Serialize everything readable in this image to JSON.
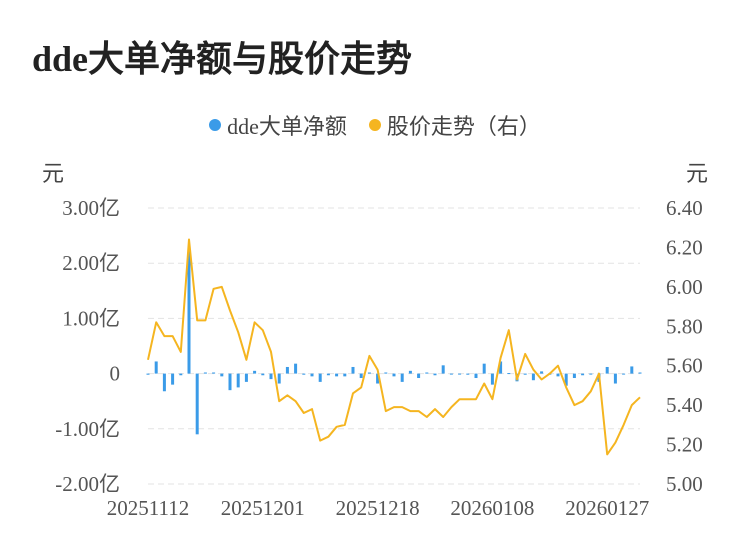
{
  "title": "dde大单净额与股价走势",
  "legend": {
    "items": [
      {
        "label": "dde大单净额",
        "color": "#3a9be8"
      },
      {
        "label": "股价走势（右）",
        "color": "#f5b520"
      }
    ]
  },
  "units": {
    "left": "元",
    "right": "元"
  },
  "chart_data": {
    "type": "bar+line",
    "x_labels": [
      "20251112",
      "20251201",
      "20251218",
      "20260108",
      "20260127"
    ],
    "x_label_positions": [
      0,
      14,
      28,
      42,
      56
    ],
    "left_axis": {
      "ticks": [
        "3.00亿",
        "2.00亿",
        "1.00亿",
        "0",
        "-1.00亿",
        "-2.00亿"
      ],
      "range": [
        -2.0,
        3.0
      ]
    },
    "right_axis": {
      "ticks": [
        "6.40",
        "6.20",
        "6.00",
        "5.80",
        "5.60",
        "5.40",
        "5.20",
        "5.00"
      ],
      "range": [
        5.0,
        6.4
      ]
    },
    "series": [
      {
        "name": "dde大单净额",
        "kind": "bar",
        "color": "#3a9be8",
        "values": [
          -0.02,
          0.22,
          -0.32,
          -0.2,
          -0.03,
          2.3,
          -1.1,
          0.02,
          0.02,
          -0.05,
          -0.3,
          -0.25,
          -0.15,
          0.05,
          -0.03,
          -0.1,
          -0.18,
          0.12,
          0.18,
          -0.02,
          -0.05,
          -0.15,
          -0.03,
          -0.05,
          -0.05,
          0.12,
          -0.08,
          0.02,
          -0.18,
          0.02,
          -0.05,
          -0.15,
          0.05,
          -0.08,
          0.02,
          -0.03,
          0.15,
          -0.01,
          -0.01,
          -0.02,
          -0.08,
          0.18,
          -0.2,
          0.22,
          0.01,
          -0.14,
          -0.02,
          -0.12,
          0.04,
          -0.02,
          -0.05,
          -0.22,
          -0.08,
          -0.03,
          -0.01,
          -0.15,
          0.12,
          -0.18,
          -0.01,
          0.13,
          0.02
        ]
      },
      {
        "name": "股价走势（右）",
        "kind": "line",
        "color": "#f5b520",
        "values": [
          5.63,
          5.82,
          5.75,
          5.75,
          5.67,
          6.24,
          5.83,
          5.83,
          5.99,
          6.0,
          5.88,
          5.77,
          5.63,
          5.82,
          5.78,
          5.67,
          5.42,
          5.45,
          5.42,
          5.36,
          5.38,
          5.22,
          5.24,
          5.29,
          5.3,
          5.46,
          5.49,
          5.65,
          5.58,
          5.37,
          5.39,
          5.39,
          5.37,
          5.37,
          5.34,
          5.38,
          5.34,
          5.39,
          5.43,
          5.43,
          5.43,
          5.51,
          5.43,
          5.64,
          5.78,
          5.53,
          5.66,
          5.58,
          5.53,
          5.56,
          5.6,
          5.49,
          5.4,
          5.42,
          5.47,
          5.56,
          5.15,
          5.21,
          5.3,
          5.4,
          5.44
        ]
      }
    ]
  }
}
